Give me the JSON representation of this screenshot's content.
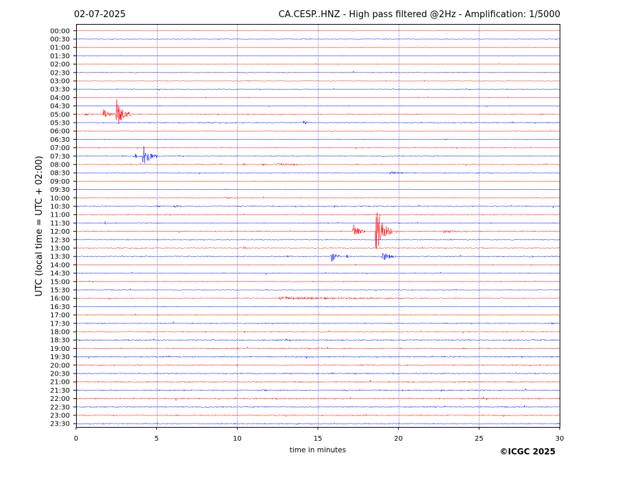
{
  "header": {
    "date": "02-07-2025",
    "title": "CA.CESP..HNZ - High pass filtered @2Hz - Amplification: 1/5000"
  },
  "footer": {
    "copyright": "©ICGC 2025"
  },
  "colors": {
    "trace_a": "#ff0000",
    "trace_b": "#0000ff",
    "grid": "#000080",
    "frame": "#000000"
  },
  "chart_data": {
    "type": "line",
    "title": "CA.CESP..HNZ - High pass filtered @2Hz - Amplification: 1/5000",
    "xlabel": "time in minutes",
    "ylabel": "UTC (local time = UTC + 02:00)",
    "xlim": [
      0,
      30
    ],
    "x_ticks": [
      0,
      5,
      10,
      15,
      20,
      25,
      30
    ],
    "x_gridlines": [
      5,
      10,
      15,
      20,
      25
    ],
    "rows": [
      "00:00",
      "00:30",
      "01:00",
      "01:30",
      "02:00",
      "02:30",
      "03:00",
      "03:30",
      "04:00",
      "04:30",
      "05:00",
      "05:30",
      "06:00",
      "06:30",
      "07:00",
      "07:30",
      "08:00",
      "08:30",
      "09:00",
      "09:30",
      "10:00",
      "10:30",
      "11:00",
      "11:30",
      "12:00",
      "12:30",
      "13:00",
      "13:30",
      "14:00",
      "14:30",
      "15:00",
      "15:30",
      "16:00",
      "16:30",
      "17:00",
      "17:30",
      "18:00",
      "18:30",
      "19:00",
      "19:30",
      "20:00",
      "20:30",
      "21:00",
      "21:30",
      "22:00",
      "22:30",
      "23:00",
      "23:30"
    ],
    "row_colors": [
      "red",
      "blue"
    ],
    "noise_level": [
      0.35,
      0.45,
      0.4,
      0.4,
      0.5,
      0.6,
      0.45,
      0.45,
      0.5,
      0.5,
      0.7,
      0.7,
      0.45,
      0.5,
      0.55,
      0.55,
      0.6,
      0.55,
      0.45,
      0.45,
      0.55,
      0.7,
      0.6,
      0.55,
      0.65,
      0.55,
      0.6,
      0.65,
      0.5,
      0.55,
      0.55,
      0.55,
      0.6,
      0.55,
      0.6,
      0.7,
      0.65,
      0.75,
      0.75,
      0.8,
      0.7,
      0.75,
      0.8,
      0.75,
      0.85,
      0.7,
      0.7,
      0.65
    ],
    "events": [
      {
        "row": "05:00",
        "minute": 0.4,
        "amplitude": 2,
        "duration": 0.4
      },
      {
        "row": "05:00",
        "minute": 1.7,
        "amplitude": 7,
        "duration": 0.3
      },
      {
        "row": "05:00",
        "minute": 2.5,
        "amplitude": 24,
        "duration": 0.35
      },
      {
        "row": "05:30",
        "minute": 14.1,
        "amplitude": 4,
        "duration": 0.15
      },
      {
        "row": "07:30",
        "minute": 2.9,
        "amplitude": 2,
        "duration": 0.1
      },
      {
        "row": "07:30",
        "minute": 3.6,
        "amplitude": 4,
        "duration": 0.2
      },
      {
        "row": "07:30",
        "minute": 4.15,
        "amplitude": 18,
        "duration": 0.35
      },
      {
        "row": "08:00",
        "minute": 10.4,
        "amplitude": 2,
        "duration": 0.1
      },
      {
        "row": "08:00",
        "minute": 11.6,
        "amplitude": 1.5,
        "duration": 0.2
      },
      {
        "row": "08:00",
        "minute": 12.5,
        "amplitude": 2,
        "duration": 0.8
      },
      {
        "row": "08:30",
        "minute": 19.5,
        "amplitude": 2,
        "duration": 0.5
      },
      {
        "row": "10:00",
        "minute": 9.3,
        "amplitude": 1.2,
        "duration": 0.4
      },
      {
        "row": "10:30",
        "minute": 6.1,
        "amplitude": 1.2,
        "duration": 0.3
      },
      {
        "row": "11:30",
        "minute": 1.8,
        "amplitude": 2.5,
        "duration": 0.1
      },
      {
        "row": "12:00",
        "minute": 13.3,
        "amplitude": 2,
        "duration": 0.1
      },
      {
        "row": "12:00",
        "minute": 17.2,
        "amplitude": 12,
        "duration": 0.3
      },
      {
        "row": "12:00",
        "minute": 18.6,
        "amplitude": 36,
        "duration": 0.4
      },
      {
        "row": "12:00",
        "minute": 22.8,
        "amplitude": 2,
        "duration": 0.6
      },
      {
        "row": "13:00",
        "minute": 10.4,
        "amplitude": 2,
        "duration": 0.1
      },
      {
        "row": "13:30",
        "minute": 13.1,
        "amplitude": 1.5,
        "duration": 0.1
      },
      {
        "row": "13:30",
        "minute": 15.8,
        "amplitude": 10,
        "duration": 0.25
      },
      {
        "row": "13:30",
        "minute": 16.8,
        "amplitude": 2,
        "duration": 0.1
      },
      {
        "row": "13:30",
        "minute": 19.0,
        "amplitude": 7,
        "duration": 0.35
      },
      {
        "row": "13:30",
        "minute": 28.2,
        "amplitude": 1.5,
        "duration": 0.1
      },
      {
        "row": "16:00",
        "minute": 12.6,
        "amplitude": 2,
        "duration": 3.6
      }
    ]
  }
}
